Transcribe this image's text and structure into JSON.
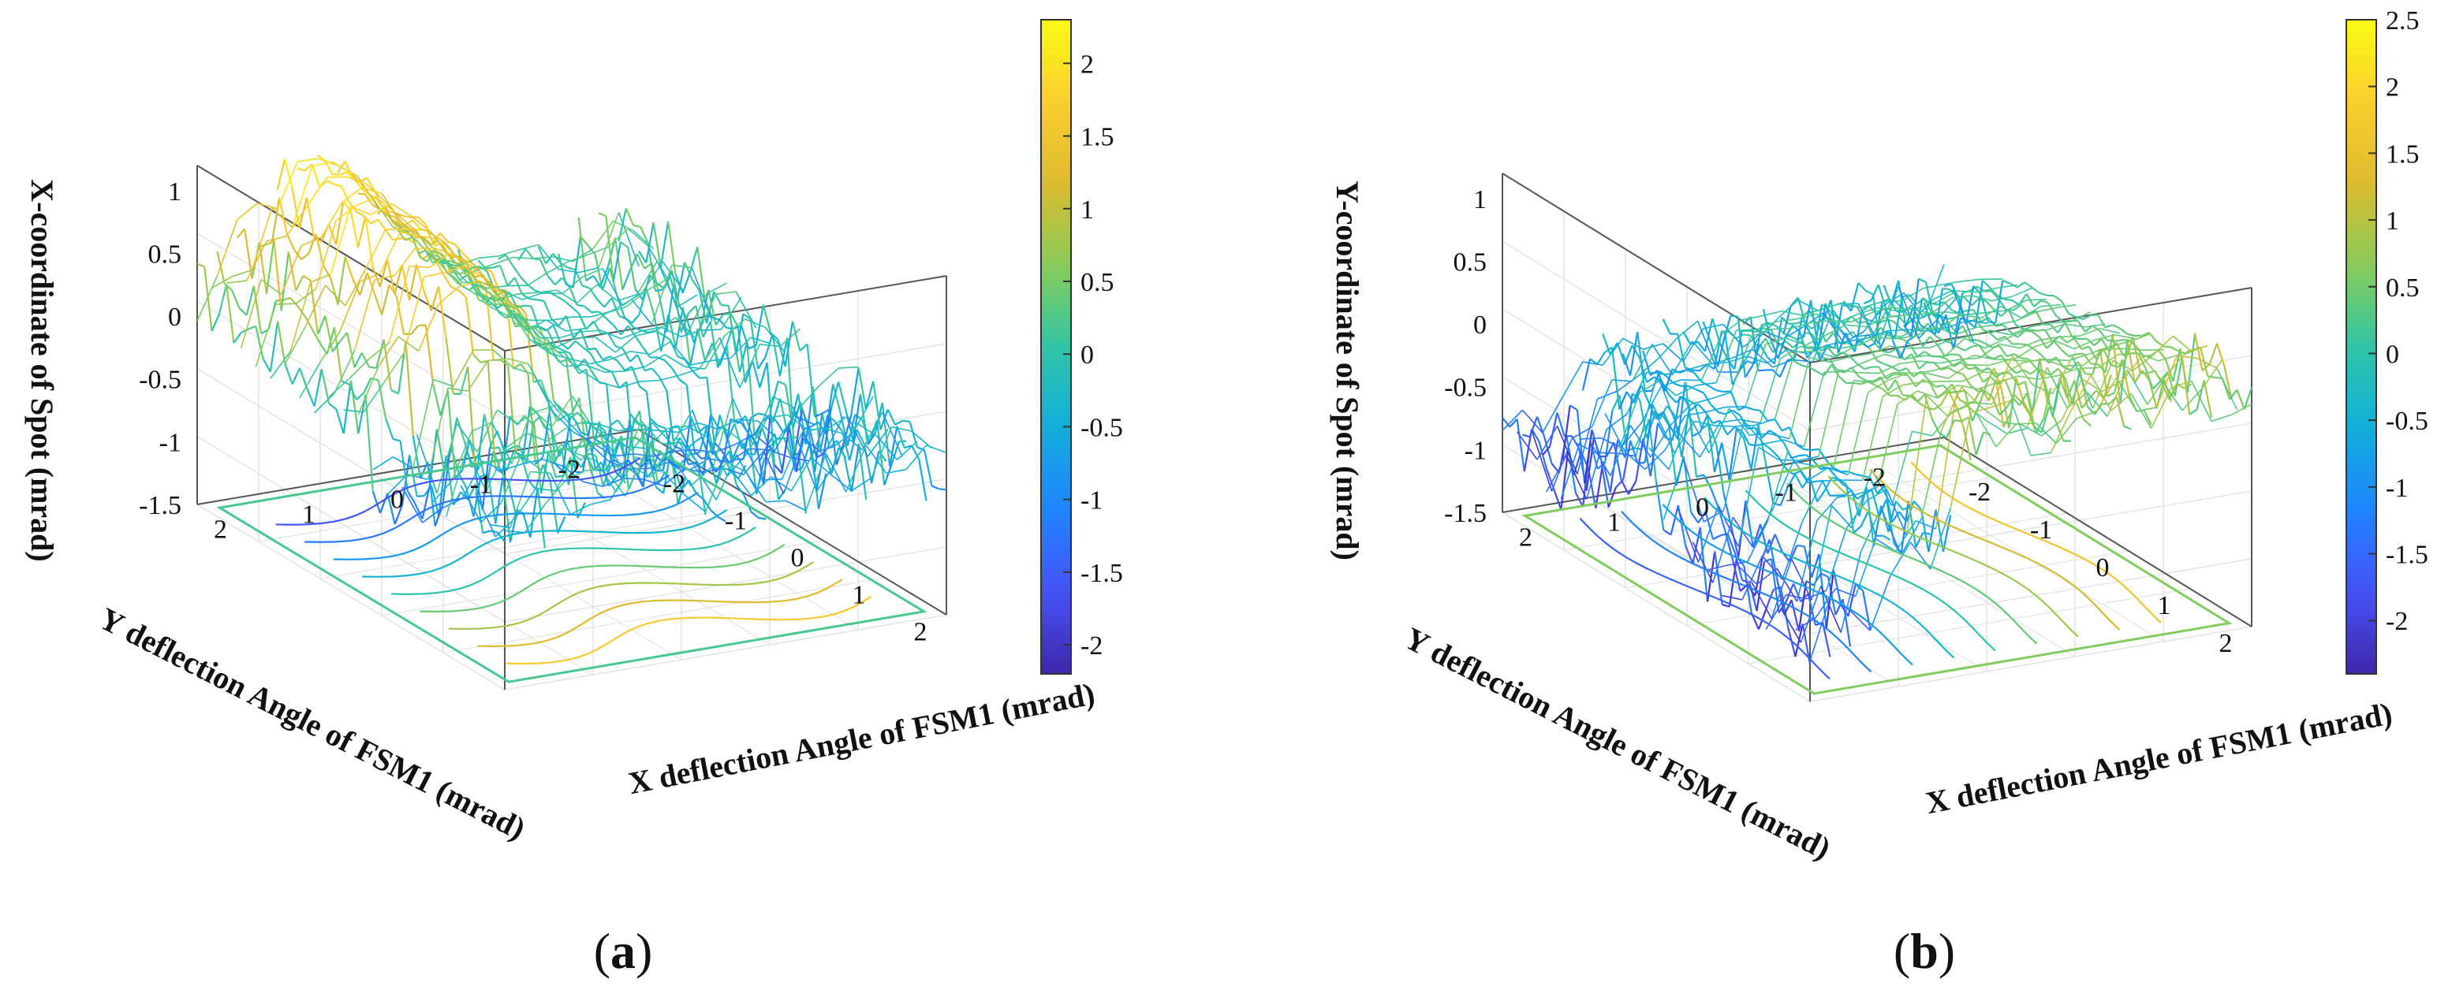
{
  "chart_data": [
    {
      "type": "surface3d-with-contour",
      "panel_label": "(a)",
      "panel_letter": "a",
      "zlabel": "X-coordinate of Spot (mrad)",
      "xlabel": "X deflection Angle of FSM1 (mrad)",
      "ylabel": "Y deflection Angle of FSM1 (mrad)",
      "xlim": [
        -2.5,
        2.5
      ],
      "ylim": [
        -2.5,
        2.5
      ],
      "zlim": [
        -1.5,
        1.2
      ],
      "x_ticks": [
        "-2",
        "-1",
        "0",
        "1",
        "2"
      ],
      "y_ticks": [
        "-2",
        "-1",
        "0",
        "1",
        "2"
      ],
      "z_ticks": [
        "-1.5",
        "-1",
        "-0.5",
        "0",
        "0.5",
        "1"
      ],
      "colorbar": {
        "colormap": "parula",
        "range": [
          -2.2,
          2.3
        ],
        "ticks": [
          "-2",
          "-1.5",
          "-1",
          "-0.5",
          "0",
          "0.5",
          "1",
          "1.5",
          "2"
        ]
      },
      "grid": true
    },
    {
      "type": "surface3d-with-contour",
      "panel_label": "(b)",
      "panel_letter": "b",
      "zlabel": "Y-coordinate of Spot (mrad)",
      "xlabel": "X deflection Angle of FSM1 (mrad)",
      "ylabel": "Y deflection Angle of FSM1 (mrad)",
      "xlim": [
        -2.5,
        2.5
      ],
      "ylim": [
        -2.5,
        2.5
      ],
      "zlim": [
        -1.5,
        1.2
      ],
      "x_ticks": [
        "-2",
        "-1",
        "0",
        "1",
        "2"
      ],
      "y_ticks": [
        "-2",
        "-1",
        "0",
        "1",
        "2"
      ],
      "z_ticks": [
        "-1.5",
        "-1",
        "-0.5",
        "0",
        "0.5",
        "1"
      ],
      "colorbar": {
        "colormap": "parula",
        "range": [
          -2.4,
          2.5
        ],
        "ticks": [
          "-2",
          "-1.5",
          "-1",
          "-0.5",
          "0",
          "0.5",
          "1",
          "1.5",
          "2",
          "2.5"
        ]
      },
      "grid": true
    }
  ]
}
